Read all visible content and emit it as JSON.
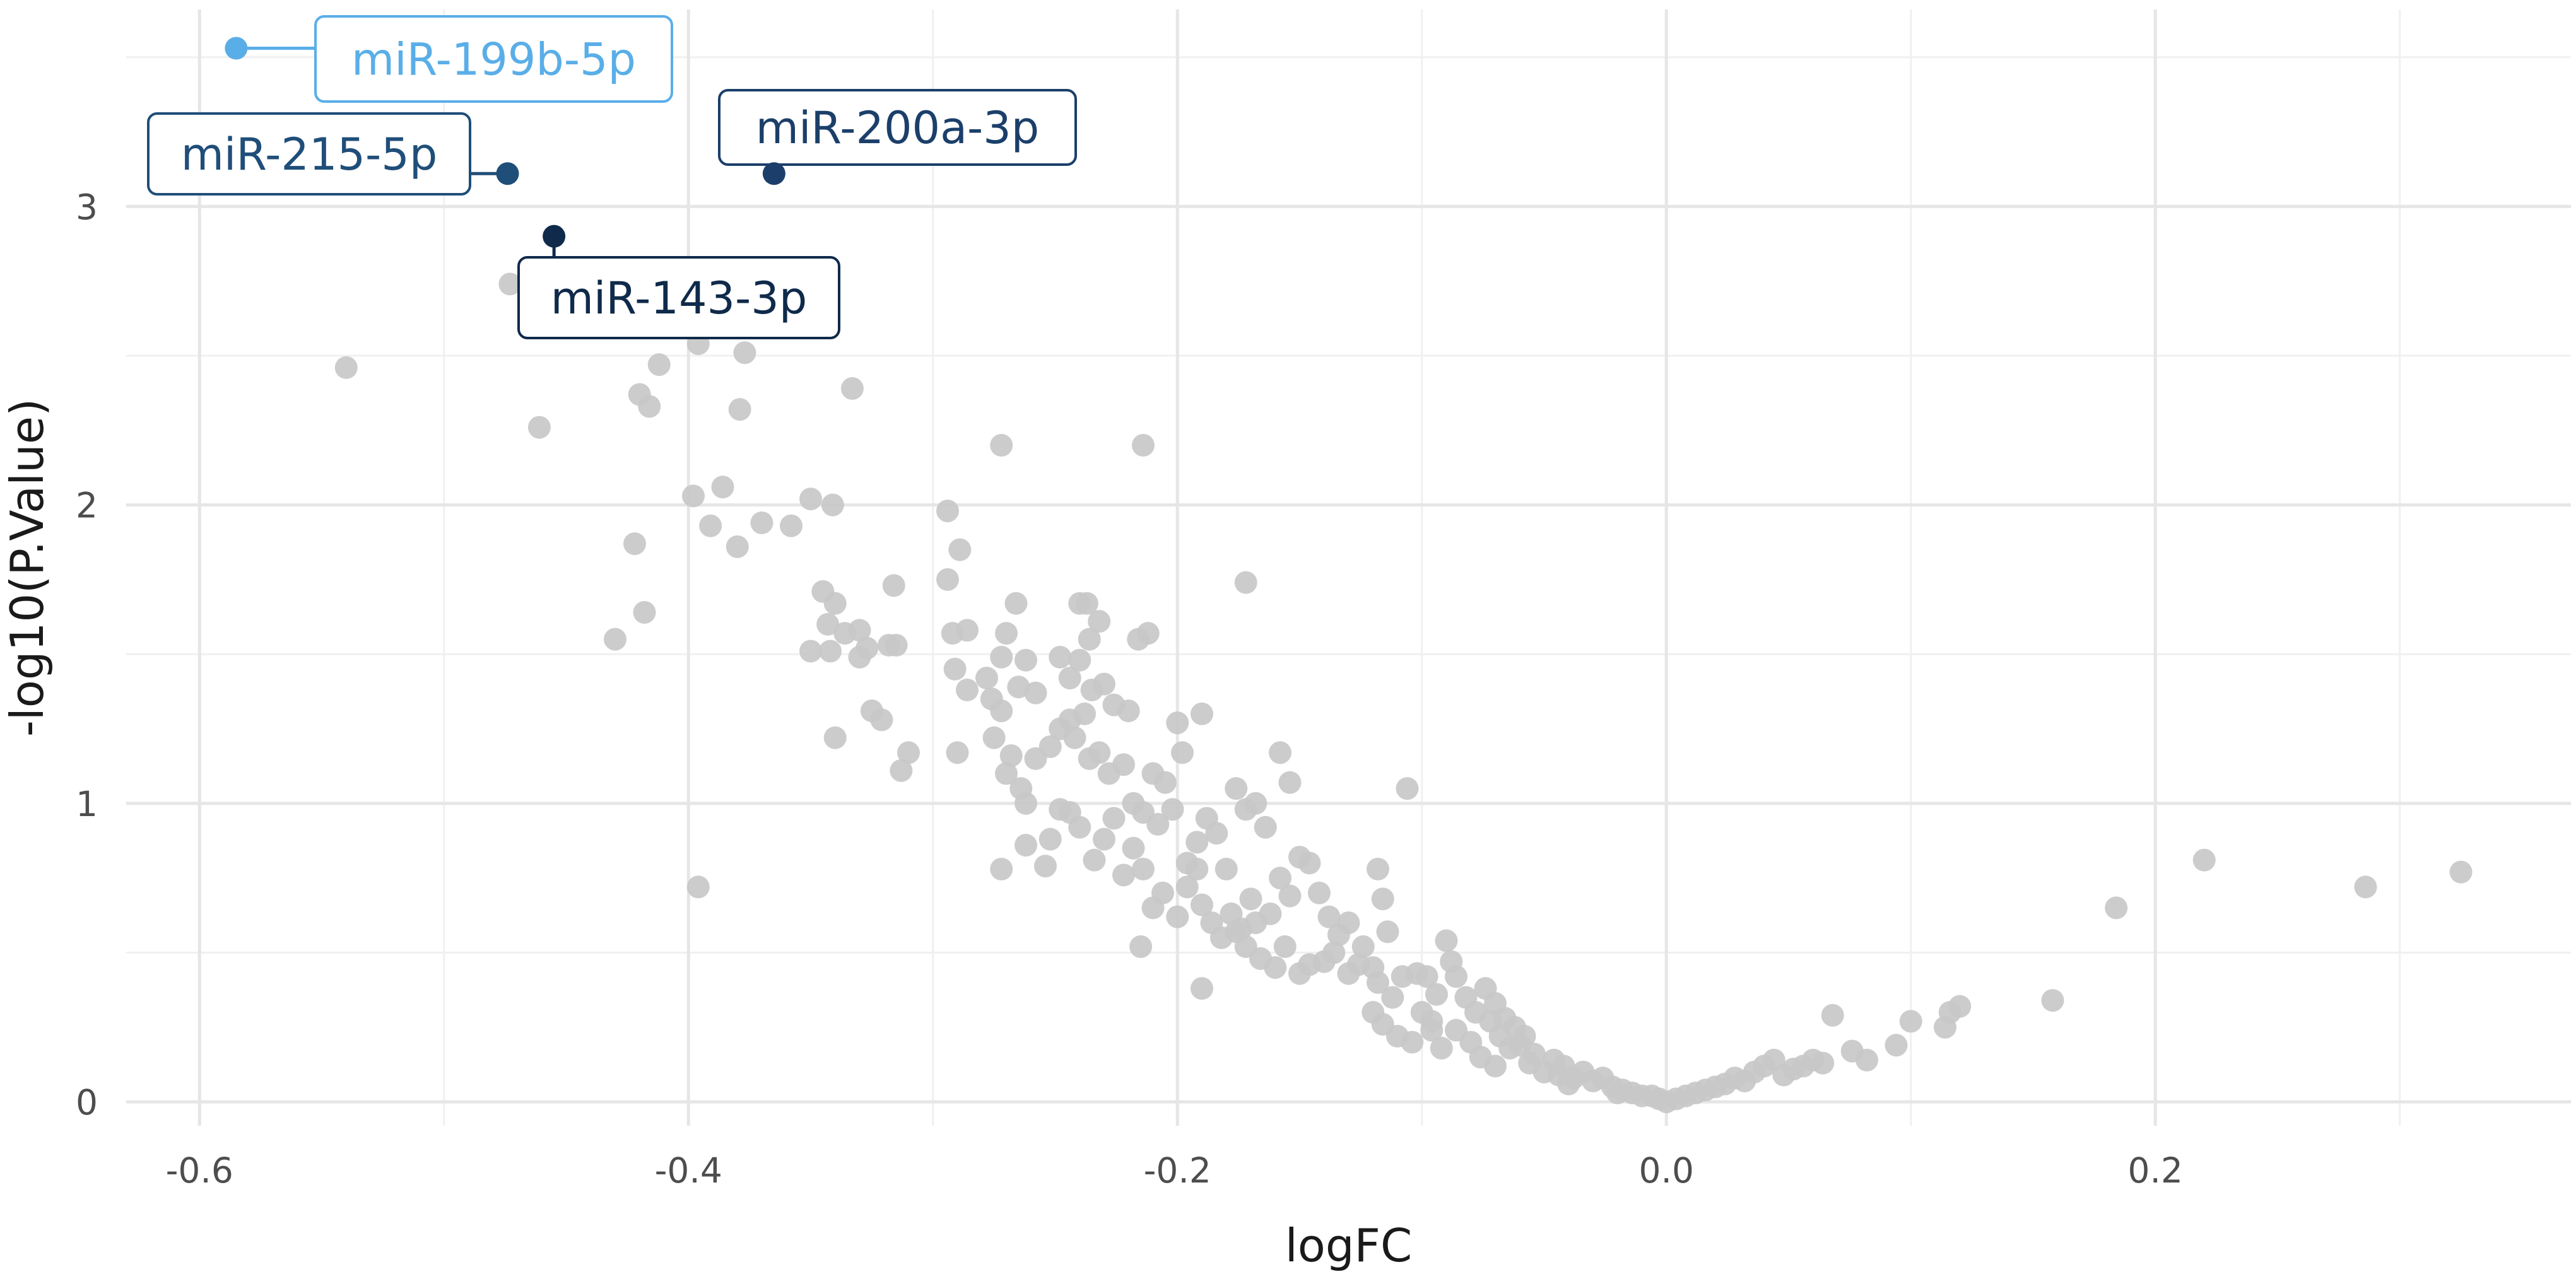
{
  "chart_data": {
    "type": "scatter",
    "title": "",
    "xlabel": "logFC",
    "ylabel": "-log10(P.Value)",
    "xlim": [
      -0.63,
      0.37
    ],
    "ylim": [
      -0.08,
      3.66
    ],
    "x_ticks": [
      -0.6,
      -0.4,
      -0.2,
      0.0,
      0.2
    ],
    "x_tick_labels": [
      "-0.6",
      "-0.4",
      "-0.2",
      "0.0",
      "0.2"
    ],
    "y_ticks": [
      0,
      1,
      2,
      3
    ],
    "y_tick_labels": [
      "0",
      "1",
      "2",
      "3"
    ],
    "grid": true,
    "background_point_color": "#c8c8c8",
    "labeled_points": [
      {
        "label": "miR-199b-5p",
        "x": -0.585,
        "y": 3.53,
        "color": "#5aaee8"
      },
      {
        "label": "miR-215-5p",
        "x": -0.474,
        "y": 3.11,
        "color": "#1f4e79"
      },
      {
        "label": "miR-200a-3p",
        "x": -0.365,
        "y": 3.11,
        "color": "#1b3f6a"
      },
      {
        "label": "miR-143-3p",
        "x": -0.455,
        "y": 2.9,
        "color": "#0f2a4a"
      }
    ],
    "points": [
      [
        -0.54,
        2.46
      ],
      [
        -0.473,
        2.74
      ],
      [
        -0.461,
        2.26
      ],
      [
        -0.412,
        2.47
      ],
      [
        -0.42,
        2.37
      ],
      [
        -0.416,
        2.33
      ],
      [
        -0.396,
        2.54
      ],
      [
        -0.377,
        2.51
      ],
      [
        -0.379,
        2.32
      ],
      [
        -0.333,
        2.39
      ],
      [
        -0.398,
        2.03
      ],
      [
        -0.386,
        2.06
      ],
      [
        -0.391,
        1.93
      ],
      [
        -0.38,
        1.86
      ],
      [
        -0.37,
        1.94
      ],
      [
        -0.358,
        1.93
      ],
      [
        -0.35,
        2.02
      ],
      [
        -0.341,
        2.0
      ],
      [
        -0.422,
        1.87
      ],
      [
        -0.418,
        1.64
      ],
      [
        -0.43,
        1.55
      ],
      [
        -0.396,
        0.72
      ],
      [
        -0.345,
        1.71
      ],
      [
        -0.34,
        1.67
      ],
      [
        -0.343,
        1.6
      ],
      [
        -0.336,
        1.57
      ],
      [
        -0.35,
        1.51
      ],
      [
        -0.342,
        1.51
      ],
      [
        -0.33,
        1.58
      ],
      [
        -0.327,
        1.52
      ],
      [
        -0.33,
        1.49
      ],
      [
        -0.316,
        1.73
      ],
      [
        -0.318,
        1.53
      ],
      [
        -0.315,
        1.53
      ],
      [
        -0.325,
        1.31
      ],
      [
        -0.321,
        1.28
      ],
      [
        -0.34,
        1.22
      ],
      [
        -0.31,
        1.17
      ],
      [
        -0.313,
        1.11
      ],
      [
        -0.294,
        1.98
      ],
      [
        -0.289,
        1.85
      ],
      [
        -0.294,
        1.75
      ],
      [
        -0.292,
        1.57
      ],
      [
        -0.286,
        1.58
      ],
      [
        -0.291,
        1.45
      ],
      [
        -0.286,
        1.38
      ],
      [
        -0.29,
        1.17
      ],
      [
        -0.272,
        2.2
      ],
      [
        -0.266,
        1.67
      ],
      [
        -0.27,
        1.57
      ],
      [
        -0.272,
        1.49
      ],
      [
        -0.262,
        1.48
      ],
      [
        -0.265,
        1.39
      ],
      [
        -0.278,
        1.42
      ],
      [
        -0.272,
        1.31
      ],
      [
        -0.276,
        1.35
      ],
      [
        -0.258,
        1.37
      ],
      [
        -0.275,
        1.22
      ],
      [
        -0.268,
        1.16
      ],
      [
        -0.27,
        1.1
      ],
      [
        -0.264,
        1.05
      ],
      [
        -0.262,
        1.0
      ],
      [
        -0.258,
        1.15
      ],
      [
        -0.252,
        1.19
      ],
      [
        -0.248,
        1.25
      ],
      [
        -0.244,
        1.28
      ],
      [
        -0.24,
        1.67
      ],
      [
        -0.237,
        1.67
      ],
      [
        -0.232,
        1.61
      ],
      [
        -0.236,
        1.55
      ],
      [
        -0.24,
        1.48
      ],
      [
        -0.244,
        1.42
      ],
      [
        -0.248,
        1.49
      ],
      [
        -0.235,
        1.38
      ],
      [
        -0.23,
        1.4
      ],
      [
        -0.226,
        1.33
      ],
      [
        -0.238,
        1.3
      ],
      [
        -0.242,
        1.22
      ],
      [
        -0.236,
        1.15
      ],
      [
        -0.232,
        1.17
      ],
      [
        -0.228,
        1.1
      ],
      [
        -0.222,
        1.13
      ],
      [
        -0.218,
        1.0
      ],
      [
        -0.244,
        0.97
      ],
      [
        -0.24,
        0.92
      ],
      [
        -0.248,
        0.98
      ],
      [
        -0.252,
        0.88
      ],
      [
        -0.272,
        0.78
      ],
      [
        -0.254,
        0.79
      ],
      [
        -0.262,
        0.86
      ],
      [
        -0.214,
        2.2
      ],
      [
        -0.212,
        1.57
      ],
      [
        -0.216,
        1.55
      ],
      [
        -0.22,
        1.31
      ],
      [
        -0.21,
        1.1
      ],
      [
        -0.205,
        1.07
      ],
      [
        -0.2,
        1.27
      ],
      [
        -0.19,
        1.3
      ],
      [
        -0.198,
        1.17
      ],
      [
        -0.202,
        0.98
      ],
      [
        -0.208,
        0.93
      ],
      [
        -0.214,
        0.97
      ],
      [
        -0.218,
        0.85
      ],
      [
        -0.222,
        0.76
      ],
      [
        -0.214,
        0.78
      ],
      [
        -0.21,
        0.65
      ],
      [
        -0.206,
        0.7
      ],
      [
        -0.2,
        0.62
      ],
      [
        -0.196,
        0.8
      ],
      [
        -0.192,
        0.87
      ],
      [
        -0.188,
        0.95
      ],
      [
        -0.184,
        0.9
      ],
      [
        -0.18,
        0.78
      ],
      [
        -0.176,
        1.05
      ],
      [
        -0.172,
        0.98
      ],
      [
        -0.168,
        1.0
      ],
      [
        -0.164,
        0.92
      ],
      [
        -0.158,
        1.17
      ],
      [
        -0.154,
        1.07
      ],
      [
        -0.172,
        1.74
      ],
      [
        -0.192,
        0.78
      ],
      [
        -0.19,
        0.38
      ],
      [
        -0.215,
        0.52
      ],
      [
        -0.17,
        0.68
      ],
      [
        -0.168,
        0.6
      ],
      [
        -0.162,
        0.63
      ],
      [
        -0.158,
        0.75
      ],
      [
        -0.154,
        0.69
      ],
      [
        -0.15,
        0.82
      ],
      [
        -0.146,
        0.8
      ],
      [
        -0.142,
        0.7
      ],
      [
        -0.138,
        0.62
      ],
      [
        -0.176,
        0.57
      ],
      [
        -0.172,
        0.52
      ],
      [
        -0.166,
        0.48
      ],
      [
        -0.16,
        0.45
      ],
      [
        -0.156,
        0.52
      ],
      [
        -0.15,
        0.43
      ],
      [
        -0.146,
        0.46
      ],
      [
        -0.14,
        0.47
      ],
      [
        -0.136,
        0.5
      ],
      [
        -0.13,
        0.43
      ],
      [
        -0.126,
        0.46
      ],
      [
        -0.118,
        0.78
      ],
      [
        -0.116,
        0.68
      ],
      [
        -0.114,
        0.57
      ],
      [
        -0.106,
        1.05
      ],
      [
        -0.12,
        0.45
      ],
      [
        -0.118,
        0.4
      ],
      [
        -0.112,
        0.35
      ],
      [
        -0.108,
        0.42
      ],
      [
        -0.102,
        0.43
      ],
      [
        -0.098,
        0.42
      ],
      [
        -0.094,
        0.36
      ],
      [
        -0.09,
        0.54
      ],
      [
        -0.088,
        0.47
      ],
      [
        -0.086,
        0.42
      ],
      [
        -0.082,
        0.35
      ],
      [
        -0.078,
        0.3
      ],
      [
        -0.074,
        0.38
      ],
      [
        -0.07,
        0.33
      ],
      [
        -0.066,
        0.28
      ],
      [
        -0.062,
        0.25
      ],
      [
        -0.12,
        0.3
      ],
      [
        -0.116,
        0.26
      ],
      [
        -0.11,
        0.22
      ],
      [
        -0.104,
        0.2
      ],
      [
        -0.096,
        0.24
      ],
      [
        -0.092,
        0.18
      ],
      [
        -0.086,
        0.24
      ],
      [
        -0.08,
        0.2
      ],
      [
        -0.076,
        0.15
      ],
      [
        -0.07,
        0.12
      ],
      [
        -0.064,
        0.18
      ],
      [
        -0.058,
        0.22
      ],
      [
        -0.054,
        0.16
      ],
      [
        -0.05,
        0.1
      ],
      [
        -0.046,
        0.14
      ],
      [
        -0.042,
        0.12
      ],
      [
        -0.038,
        0.08
      ],
      [
        -0.034,
        0.1
      ],
      [
        -0.03,
        0.07
      ],
      [
        -0.026,
        0.08
      ],
      [
        -0.022,
        0.05
      ],
      [
        -0.018,
        0.04
      ],
      [
        -0.014,
        0.03
      ],
      [
        -0.01,
        0.02
      ],
      [
        -0.006,
        0.02
      ],
      [
        -0.003,
        0.01
      ],
      [
        0.0,
        0.0
      ],
      [
        0.004,
        0.01
      ],
      [
        0.008,
        0.02
      ],
      [
        0.012,
        0.03
      ],
      [
        0.016,
        0.04
      ],
      [
        0.02,
        0.05
      ],
      [
        0.024,
        0.06
      ],
      [
        0.028,
        0.08
      ],
      [
        0.032,
        0.07
      ],
      [
        0.036,
        0.1
      ],
      [
        0.04,
        0.12
      ],
      [
        0.044,
        0.14
      ],
      [
        0.048,
        0.09
      ],
      [
        0.052,
        0.11
      ],
      [
        0.056,
        0.12
      ],
      [
        0.06,
        0.14
      ],
      [
        0.064,
        0.13
      ],
      [
        0.068,
        0.29
      ],
      [
        0.076,
        0.17
      ],
      [
        0.082,
        0.14
      ],
      [
        0.094,
        0.19
      ],
      [
        0.1,
        0.27
      ],
      [
        0.114,
        0.25
      ],
      [
        0.116,
        0.3
      ],
      [
        0.12,
        0.32
      ],
      [
        0.158,
        0.34
      ],
      [
        0.184,
        0.65
      ],
      [
        0.22,
        0.81
      ],
      [
        0.286,
        0.72
      ],
      [
        0.325,
        0.77
      ],
      [
        -0.226,
        0.95
      ],
      [
        -0.23,
        0.88
      ],
      [
        -0.234,
        0.81
      ],
      [
        -0.196,
        0.72
      ],
      [
        -0.19,
        0.66
      ],
      [
        -0.186,
        0.6
      ],
      [
        -0.182,
        0.55
      ],
      [
        -0.178,
        0.63
      ],
      [
        -0.174,
        0.58
      ],
      [
        -0.134,
        0.56
      ],
      [
        -0.13,
        0.6
      ],
      [
        -0.124,
        0.52
      ],
      [
        -0.1,
        0.3
      ],
      [
        -0.096,
        0.27
      ],
      [
        -0.072,
        0.27
      ],
      [
        -0.068,
        0.22
      ],
      [
        -0.06,
        0.19
      ],
      [
        -0.056,
        0.13
      ],
      [
        -0.044,
        0.09
      ],
      [
        -0.04,
        0.06
      ],
      [
        -0.02,
        0.03
      ]
    ]
  }
}
